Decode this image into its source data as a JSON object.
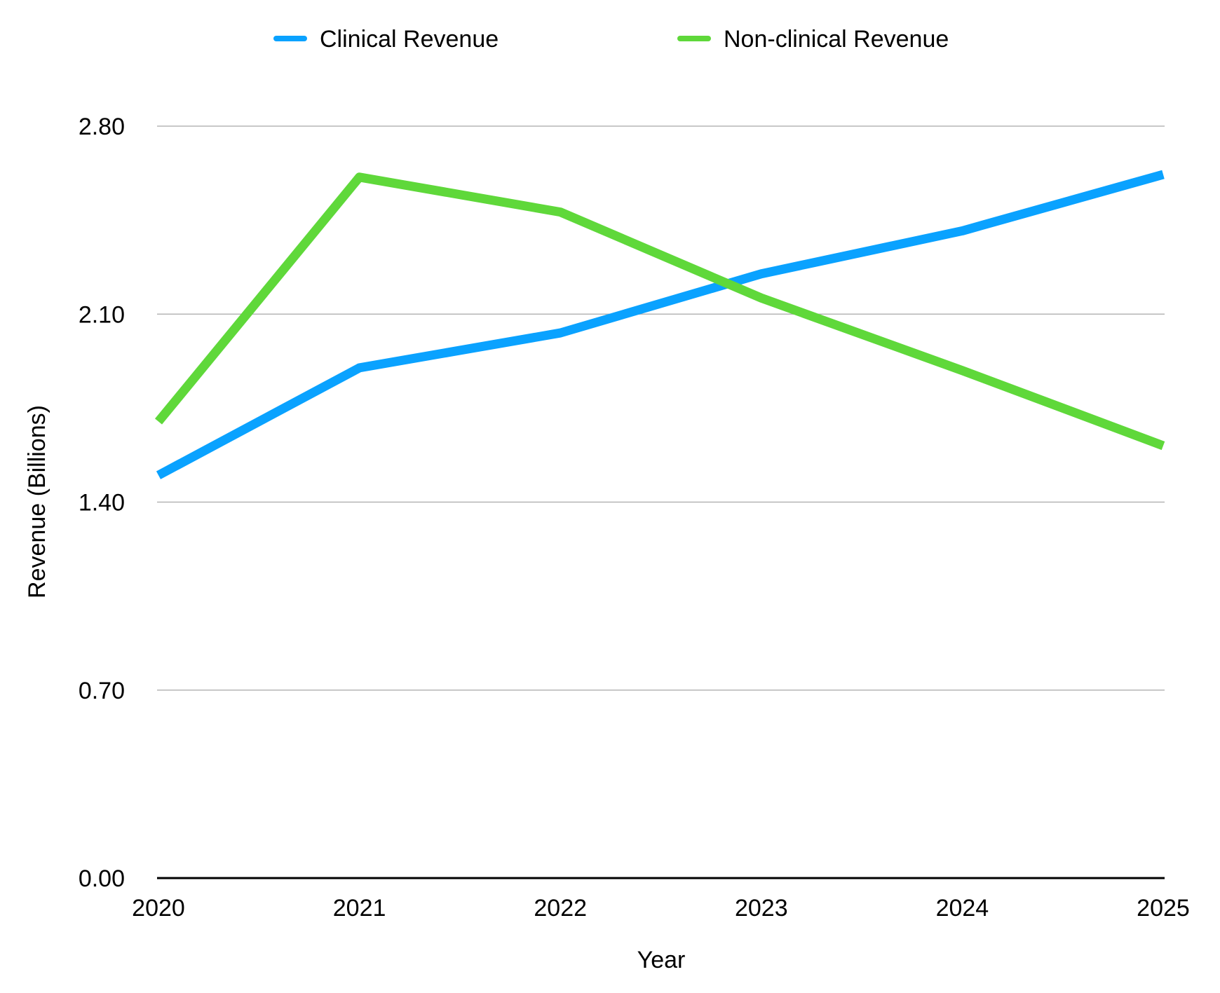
{
  "chart_data": {
    "type": "line",
    "title": "",
    "xlabel": "Year",
    "ylabel": "Revenue (Billions)",
    "x": [
      "2020",
      "2021",
      "2022",
      "2023",
      "2024",
      "2025"
    ],
    "ylim": [
      0,
      2.8
    ],
    "yticks": [
      "0.00",
      "0.70",
      "1.40",
      "2.10",
      "2.80"
    ],
    "ytick_values": [
      0,
      0.7,
      1.4,
      2.1,
      2.8
    ],
    "grid": true,
    "legend_position": "top-center",
    "series": [
      {
        "name": "Clinical Revenue",
        "color": "#0aa2ff",
        "values": [
          1.5,
          1.9,
          2.03,
          2.25,
          2.41,
          2.62
        ]
      },
      {
        "name": "Non-clinical Revenue",
        "color": "#5fd83a",
        "values": [
          1.7,
          2.61,
          2.48,
          2.16,
          1.89,
          1.61
        ]
      }
    ]
  }
}
